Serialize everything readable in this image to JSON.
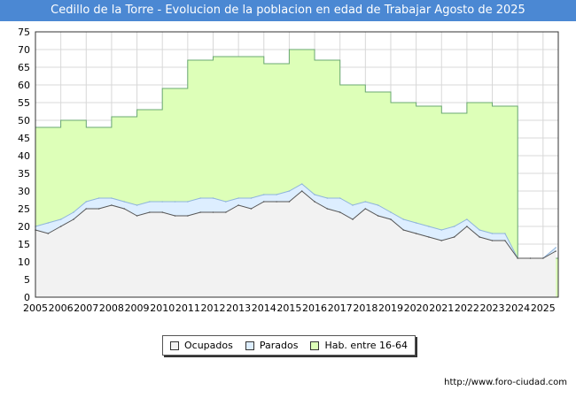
{
  "header": {
    "title": "Cedillo de la Torre - Evolucion de la poblacion en edad de Trabajar Agosto de 2025"
  },
  "footer": {
    "source": "http://www.foro-ciudad.com"
  },
  "colors": {
    "title_bar": "#4b88d3",
    "ocupados_fill": "#f2f2f2",
    "ocupados_line": "#555555",
    "parados_fill": "#ddeeff",
    "parados_line": "#8fb4dc",
    "hab_fill": "#ddffb8",
    "hab_line": "#6aa872",
    "grid": "#d8d8d8"
  },
  "chart_data": {
    "type": "area",
    "title": "Cedillo de la Torre - Evolucion de la poblacion en edad de Trabajar Agosto de 2025",
    "x_ticks": [
      "2005",
      "2006",
      "2007",
      "2008",
      "2009",
      "2010",
      "2011",
      "2012",
      "2013",
      "2014",
      "2015",
      "2016",
      "2017",
      "2018",
      "2019",
      "2020",
      "2021",
      "2022",
      "2023",
      "2024",
      "2025"
    ],
    "y_ticks": [
      0,
      5,
      10,
      15,
      20,
      25,
      30,
      35,
      40,
      45,
      50,
      55,
      60,
      65,
      70,
      75
    ],
    "ylim": [
      0,
      75
    ],
    "xlim": [
      2005,
      2025.6
    ],
    "grid": true,
    "legend_position": "bottom-center",
    "legend": [
      "Ocupados",
      "Parados",
      "Hab. entre 16-64"
    ],
    "series": [
      {
        "name": "Hab. entre 16-64",
        "step": true,
        "x": [
          2005,
          2006,
          2007,
          2008,
          2009,
          2010,
          2011,
          2012,
          2013,
          2014,
          2015,
          2016,
          2017,
          2018,
          2019,
          2020,
          2021,
          2022,
          2023,
          2024
        ],
        "values": [
          48,
          50,
          48,
          51,
          53,
          59,
          67,
          68,
          68,
          66,
          70,
          67,
          60,
          58,
          55,
          54,
          52,
          55,
          54,
          11
        ]
      },
      {
        "name": "Parados",
        "x": [
          2005,
          2005.5,
          2006,
          2006.5,
          2007,
          2007.5,
          2008,
          2008.5,
          2009,
          2009.5,
          2010,
          2010.5,
          2011,
          2011.5,
          2012,
          2012.5,
          2013,
          2013.5,
          2014,
          2014.5,
          2015,
          2015.5,
          2016,
          2016.5,
          2017,
          2017.5,
          2018,
          2018.5,
          2019,
          2019.5,
          2020,
          2020.5,
          2021,
          2021.5,
          2022,
          2022.5,
          2023,
          2023.5,
          2024,
          2024.5,
          2025,
          2025.5
        ],
        "values": [
          20,
          21,
          22,
          24,
          27,
          28,
          28,
          27,
          26,
          27,
          27,
          27,
          27,
          28,
          28,
          27,
          28,
          28,
          29,
          29,
          30,
          32,
          29,
          28,
          28,
          26,
          27,
          26,
          24,
          22,
          21,
          20,
          19,
          20,
          22,
          19,
          18,
          18,
          11,
          11,
          11,
          14
        ]
      },
      {
        "name": "Ocupados",
        "x": [
          2005,
          2005.5,
          2006,
          2006.5,
          2007,
          2007.5,
          2008,
          2008.5,
          2009,
          2009.5,
          2010,
          2010.5,
          2011,
          2011.5,
          2012,
          2012.5,
          2013,
          2013.5,
          2014,
          2014.5,
          2015,
          2015.5,
          2016,
          2016.5,
          2017,
          2017.5,
          2018,
          2018.5,
          2019,
          2019.5,
          2020,
          2020.5,
          2021,
          2021.5,
          2022,
          2022.5,
          2023,
          2023.5,
          2024,
          2024.5,
          2025,
          2025.5
        ],
        "values": [
          19,
          18,
          20,
          22,
          25,
          25,
          26,
          25,
          23,
          24,
          24,
          23,
          23,
          24,
          24,
          24,
          26,
          25,
          27,
          27,
          27,
          30,
          27,
          25,
          24,
          22,
          25,
          23,
          22,
          19,
          18,
          17,
          16,
          17,
          20,
          17,
          16,
          16,
          11,
          11,
          11,
          13
        ]
      }
    ]
  }
}
